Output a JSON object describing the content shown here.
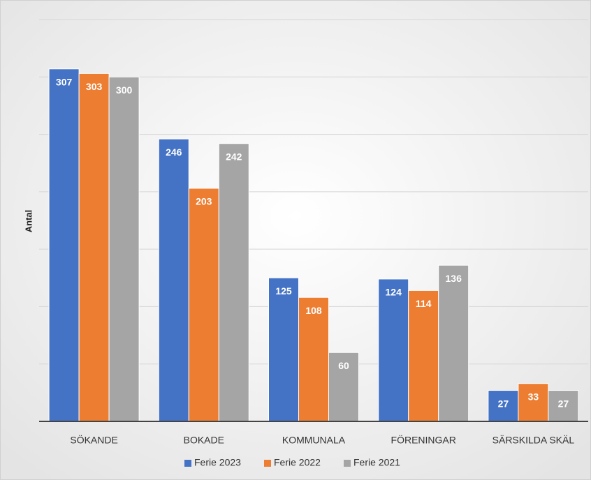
{
  "chart_data": {
    "type": "bar",
    "y_label": "Antal",
    "categories": [
      "SÖKANDE",
      "BOKADE",
      "KOMMUNALA",
      "FÖRENINGAR",
      "SÄRSKILDA SKÄL"
    ],
    "series": [
      {
        "name": "Ferie 2023",
        "color": "#4472c4",
        "values": [
          307,
          246,
          125,
          124,
          27
        ]
      },
      {
        "name": "Ferie 2022",
        "color": "#ed7d31",
        "values": [
          303,
          203,
          108,
          114,
          33
        ]
      },
      {
        "name": "Ferie 2021",
        "color": "#a5a5a5",
        "values": [
          300,
          242,
          60,
          136,
          27
        ]
      }
    ],
    "ylim": [
      0,
      350
    ],
    "yticks": [
      0,
      50,
      100,
      150,
      200,
      250,
      300,
      350
    ],
    "grid": true,
    "legend": "bottom"
  }
}
